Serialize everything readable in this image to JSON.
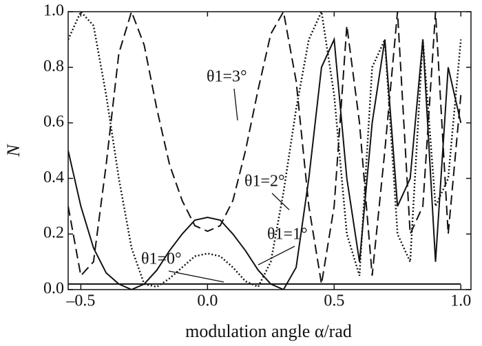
{
  "chart_data": {
    "type": "line",
    "xlabel": "modulation angle α/rad",
    "ylabel": "N",
    "x": [
      -0.55,
      -0.5,
      -0.45,
      -0.4,
      -0.35,
      -0.3,
      -0.25,
      -0.2,
      -0.15,
      -0.1,
      -0.05,
      0,
      0.05,
      0.1,
      0.15,
      0.2,
      0.25,
      0.3,
      0.35,
      0.4,
      0.45,
      0.5,
      0.55,
      0.6,
      0.65,
      0.7,
      0.75,
      0.8,
      0.85,
      0.9,
      0.95,
      1.0
    ],
    "series": [
      {
        "name": "θ1=3°",
        "color": "#111111",
        "dash": "14 7",
        "values": [
          0.3,
          0.05,
          0.1,
          0.45,
          0.85,
          1.0,
          0.88,
          0.65,
          0.45,
          0.32,
          0.23,
          0.21,
          0.23,
          0.32,
          0.5,
          0.72,
          0.92,
          1.0,
          0.75,
          0.3,
          0.02,
          0.3,
          0.95,
          0.6,
          0.05,
          0.5,
          1.0,
          0.2,
          0.3,
          1.0,
          0.2,
          0.7
        ]
      },
      {
        "name": "θ1=2°",
        "color": "#111111",
        "dash": "2 3",
        "values": [
          0.9,
          1.0,
          0.95,
          0.7,
          0.4,
          0.15,
          0.02,
          0.01,
          0.04,
          0.08,
          0.12,
          0.13,
          0.12,
          0.08,
          0.03,
          0.01,
          0.1,
          0.35,
          0.65,
          0.9,
          1.0,
          0.7,
          0.2,
          0.05,
          0.8,
          0.9,
          0.2,
          0.1,
          0.9,
          0.3,
          0.4,
          0.9
        ]
      },
      {
        "name": "θ1=1°",
        "color": "#111111",
        "dash": "none",
        "values": [
          0.5,
          0.3,
          0.15,
          0.06,
          0.02,
          0.0,
          0.02,
          0.07,
          0.14,
          0.2,
          0.25,
          0.26,
          0.25,
          0.2,
          0.14,
          0.07,
          0.02,
          0.0,
          0.08,
          0.4,
          0.8,
          0.9,
          0.4,
          0.1,
          0.6,
          0.9,
          0.3,
          0.4,
          0.9,
          0.1,
          0.8,
          0.6
        ]
      },
      {
        "name": "θ1=0°",
        "color": "#111111",
        "dash": "none",
        "values": [
          0.02,
          0.02,
          0.02,
          0.02,
          0.02,
          0.02,
          0.02,
          0.02,
          0.02,
          0.02,
          0.02,
          0.02,
          0.02,
          0.02,
          0.02,
          0.02,
          0.02,
          0.02,
          0.02,
          0.02,
          0.02,
          0.02,
          0.02,
          0.02,
          0.02,
          0.02,
          0.02,
          0.02,
          0.02,
          0.02,
          0.02,
          0.02
        ]
      }
    ],
    "xlim": [
      -0.55,
      1.04
    ],
    "ylim": [
      0,
      1
    ],
    "xticks": [
      {
        "value": -0.5,
        "label": "–0.5"
      },
      {
        "value": 0,
        "label": "0.0"
      },
      {
        "value": 0.5,
        "label": "0.5"
      },
      {
        "value": 1,
        "label": "1.0"
      }
    ],
    "yticks": [
      {
        "value": 0,
        "label": "0.0"
      },
      {
        "value": 0.2,
        "label": "0.2"
      },
      {
        "value": 0.4,
        "label": "0.4"
      },
      {
        "value": 0.6,
        "label": "0.6"
      },
      {
        "value": 0.8,
        "label": "0.8"
      },
      {
        "value": 1,
        "label": "1.0"
      }
    ]
  }
}
